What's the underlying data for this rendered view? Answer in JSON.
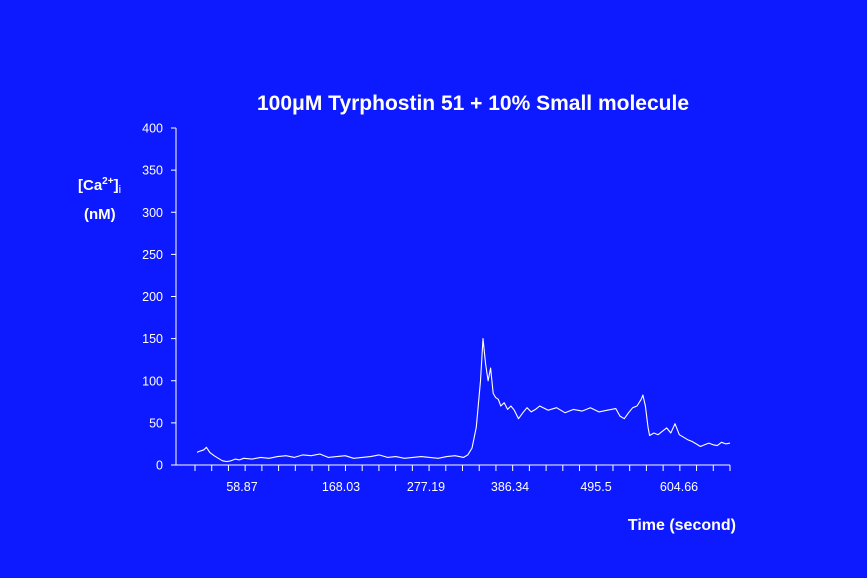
{
  "chart_data": {
    "type": "line",
    "title": "100μM Tyrphostin 51 + 10% Small molecule",
    "ylabel_line1": "[Ca",
    "ylabel_sup": "2+",
    "ylabel_close": "]",
    "ylabel_sub": "i",
    "ylabel_line2": "(nM)",
    "xlabel": "Time (second)",
    "ylim": [
      0,
      400
    ],
    "xlim": [
      0,
      655
    ],
    "y_ticks": [
      0,
      50,
      100,
      150,
      200,
      250,
      300,
      350,
      400
    ],
    "x_tick_labels": [
      "58.87",
      "168.03",
      "277.19",
      "386.34",
      "495.5",
      "604.66"
    ],
    "grid": false,
    "legend": "none",
    "colors": {
      "background": "#0d1aff",
      "foreground": "#ffffff"
    },
    "series": [
      {
        "x": [
          25,
          27,
          30,
          33,
          36,
          40,
          45,
          50,
          55,
          60,
          65,
          70,
          75,
          80,
          90,
          100,
          110,
          120,
          130,
          140,
          150,
          160,
          170,
          180,
          190,
          200,
          210,
          220,
          230,
          240,
          250,
          260,
          270,
          280,
          290,
          300,
          310,
          320,
          330,
          340,
          345,
          350,
          355,
          360,
          363,
          366,
          369,
          372,
          375,
          378,
          381,
          384,
          388,
          392,
          396,
          400,
          405,
          410,
          415,
          420,
          425,
          430,
          440,
          450,
          460,
          470,
          480,
          490,
          500,
          510,
          520,
          525,
          530,
          535,
          540,
          545,
          550,
          552,
          555,
          558,
          560,
          565,
          570,
          575,
          580,
          585,
          590,
          595,
          600,
          605,
          610,
          615,
          620,
          625,
          630,
          635,
          640,
          645,
          650,
          655
        ],
        "y": [
          15,
          16,
          17,
          18,
          21,
          15,
          11,
          8,
          5,
          4,
          5,
          7,
          6,
          8,
          7,
          9,
          8,
          10,
          11,
          9,
          12,
          11,
          13,
          9,
          10,
          11,
          8,
          9,
          10,
          12,
          9,
          10,
          8,
          9,
          10,
          9,
          8,
          10,
          11,
          9,
          12,
          20,
          45,
          100,
          150,
          120,
          100,
          115,
          85,
          80,
          78,
          70,
          74,
          66,
          70,
          65,
          55,
          62,
          68,
          63,
          66,
          70,
          65,
          68,
          62,
          66,
          64,
          68,
          63,
          65,
          67,
          58,
          55,
          62,
          68,
          70,
          78,
          83,
          70,
          45,
          35,
          38,
          36,
          40,
          44,
          38,
          49,
          36,
          33,
          30,
          28,
          25,
          22,
          24,
          26,
          24,
          23,
          27,
          25,
          26
        ]
      }
    ]
  }
}
